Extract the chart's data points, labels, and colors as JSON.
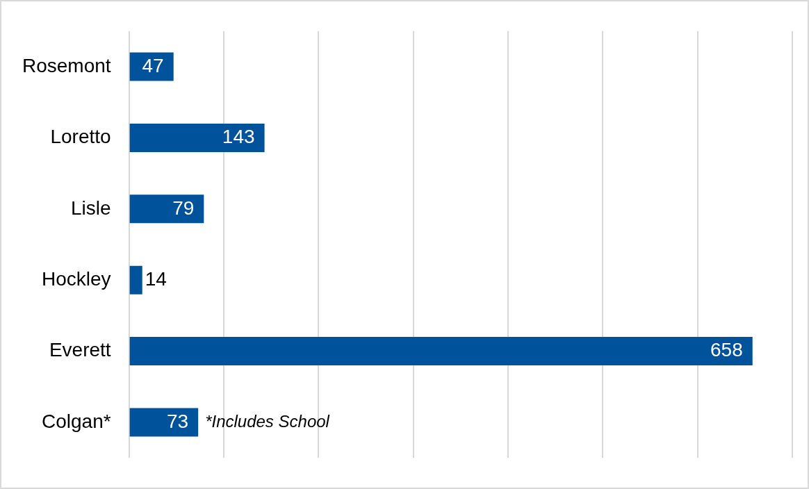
{
  "chart_data": {
    "type": "bar",
    "orientation": "horizontal",
    "categories": [
      "Rosemont",
      "Loretto",
      "Lisle",
      "Hockley",
      "Everett",
      "Colgan*"
    ],
    "values": [
      47,
      143,
      79,
      14,
      658,
      73
    ],
    "color": "#00539b",
    "xlim": [
      0,
      700
    ],
    "xticks": [
      {
        "value": 0,
        "label": null
      },
      {
        "value": 100,
        "label": null
      },
      {
        "value": 200,
        "label": null
      },
      {
        "value": 300,
        "label": null
      },
      {
        "value": 400,
        "label": null
      },
      {
        "value": 500,
        "label": null
      },
      {
        "value": 600,
        "label": null
      },
      {
        "value": 700,
        "label": null
      }
    ],
    "tick_labels": "y",
    "grid": "x",
    "legend": false,
    "data_labels": true,
    "annotations": [
      {
        "text": "*Includes School",
        "x": 73,
        "y": "Colgan*"
      }
    ]
  }
}
